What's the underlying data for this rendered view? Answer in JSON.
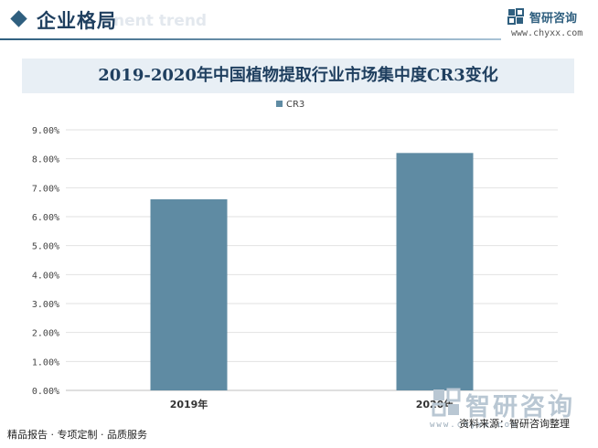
{
  "header": {
    "title": "企业格局",
    "ghost_text": "nent trend"
  },
  "brand": {
    "name": "智研咨询",
    "url": "www.chyxx.com"
  },
  "chart_data": {
    "type": "bar",
    "title": "2019-2020年中国植物提取行业市场集中度CR3变化",
    "categories": [
      "2019年",
      "2020年"
    ],
    "series": [
      {
        "name": "CR3",
        "values": [
          6.6,
          8.2
        ],
        "color": "#5f8ba3"
      }
    ],
    "ylim": [
      0,
      9
    ],
    "yticks": [
      "0.00%",
      "1.00%",
      "2.00%",
      "3.00%",
      "4.00%",
      "5.00%",
      "6.00%",
      "7.00%",
      "8.00%",
      "9.00%"
    ],
    "unit": "%",
    "grid": true,
    "legend": "top-center"
  },
  "footer": {
    "left": "精品报告 · 专项定制 · 品质服务",
    "source": "资料来源：智研咨询整理"
  },
  "watermark": {
    "text": "智研咨询",
    "url": "www.chyxx.com"
  }
}
